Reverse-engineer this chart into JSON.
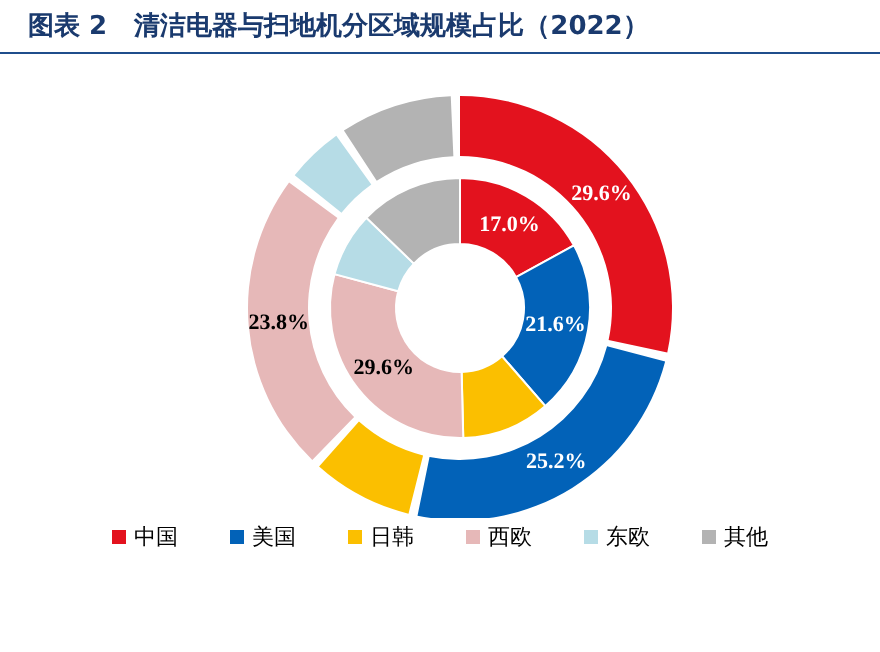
{
  "chart_data": {
    "type": "donut",
    "title": "图表 2   清洁电器与扫地机分区域规模占比（2022）",
    "categories": [
      "中国",
      "美国",
      "日韩",
      "西欧",
      "东欧",
      "其他"
    ],
    "colors": [
      "#e3121e",
      "#0262b8",
      "#fbbf00",
      "#e6b8b8",
      "#b6dce6",
      "#b3b3b3"
    ],
    "legend": "bottom",
    "series": [
      {
        "values": [
          17.0,
          21.6,
          11.0,
          29.6,
          8.0,
          12.8
        ],
        "value_labels": [
          "17.0%",
          "21.6%",
          null,
          "29.6%",
          null,
          null
        ]
      },
      {
        "values": [
          29.6,
          25.2,
          8.0,
          23.8,
          4.5,
          8.9
        ],
        "value_labels": [
          "29.6%",
          "25.2%",
          null,
          "23.8%",
          null,
          null
        ]
      }
    ]
  }
}
